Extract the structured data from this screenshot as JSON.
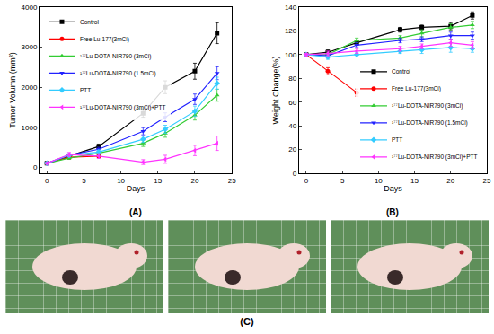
{
  "chart_data": [
    {
      "type": "line",
      "caption": "(A)",
      "x_label": "Days",
      "y_label": "Tumor Volumn (mm³)",
      "xlim": [
        -1,
        25
      ],
      "xticks": [
        0,
        5,
        10,
        15,
        20,
        25
      ],
      "ylim": [
        -150,
        4000
      ],
      "yticks": [
        0,
        1000,
        2000,
        3000,
        4000
      ],
      "legend": "upper left",
      "series": [
        {
          "name": "Control",
          "color": "#000000",
          "marker": "square",
          "x": [
            0,
            3,
            7,
            13,
            16,
            20,
            23
          ],
          "values": [
            100,
            280,
            520,
            1350,
            2000,
            2400,
            3350
          ],
          "errors": [
            10,
            40,
            60,
            100,
            160,
            200,
            260
          ]
        },
        {
          "name": "Free Lu-177(3mCi)",
          "color": "#ff0000",
          "marker": "circle",
          "x": [
            0,
            3,
            7
          ],
          "values": [
            100,
            250,
            280
          ],
          "errors": [
            10,
            40,
            40
          ]
        },
        {
          "name": "¹⁷⁷Lu-DOTA-NIR790 (3mCi)",
          "color": "#33cc33",
          "marker": "triangle-up",
          "x": [
            0,
            3,
            7,
            13,
            16,
            20,
            23
          ],
          "values": [
            100,
            230,
            350,
            600,
            850,
            1300,
            1800
          ],
          "errors": [
            10,
            30,
            50,
            80,
            100,
            120,
            150
          ]
        },
        {
          "name": "¹⁷⁷Lu-DOTA-NIR790 (1.5mCi)",
          "color": "#2222ff",
          "marker": "triangle-down",
          "x": [
            0,
            3,
            7,
            13,
            16,
            20,
            23
          ],
          "values": [
            100,
            300,
            450,
            900,
            1250,
            1700,
            2350
          ],
          "errors": [
            10,
            30,
            50,
            90,
            110,
            130,
            160
          ]
        },
        {
          "name": "PTT",
          "color": "#33ccff",
          "marker": "diamond",
          "x": [
            0,
            3,
            7,
            13,
            16,
            20,
            23
          ],
          "values": [
            100,
            300,
            380,
            700,
            950,
            1400,
            2100
          ],
          "errors": [
            10,
            40,
            50,
            80,
            100,
            130,
            150
          ]
        },
        {
          "name": "¹⁷⁷Lu-DOTA-NIR790 (3mCi)+PTT",
          "color": "#ff33ff",
          "marker": "triangle-left",
          "x": [
            0,
            3,
            7,
            13,
            16,
            20,
            23
          ],
          "values": [
            100,
            320,
            280,
            130,
            200,
            420,
            600
          ],
          "errors": [
            10,
            50,
            60,
            60,
            100,
            130,
            180
          ]
        }
      ]
    },
    {
      "type": "line",
      "caption": "(B)",
      "x_label": "Days",
      "y_label": "Weight Change(%)",
      "xlim": [
        -1,
        25
      ],
      "xticks": [
        0,
        5,
        10,
        15,
        20,
        25
      ],
      "ylim": [
        0,
        140
      ],
      "yticks": [
        0,
        20,
        40,
        60,
        80,
        100,
        120,
        140
      ],
      "legend": "lower right",
      "series": [
        {
          "name": "Control",
          "color": "#000000",
          "marker": "square",
          "x": [
            0,
            3,
            7,
            13,
            16,
            20,
            23
          ],
          "values": [
            100,
            102,
            110,
            121,
            123,
            124,
            133
          ],
          "errors": [
            1,
            2,
            2,
            2,
            2,
            3,
            3
          ]
        },
        {
          "name": "Free Lu-177(3mCi)",
          "color": "#ff0000",
          "marker": "circle",
          "x": [
            0,
            3,
            7
          ],
          "values": [
            100,
            86,
            68
          ],
          "errors": [
            1,
            3,
            3
          ]
        },
        {
          "name": "¹⁷⁷Lu-DOTA-NIR790 (3mCi)",
          "color": "#33cc33",
          "marker": "triangle-up",
          "x": [
            0,
            3,
            7,
            13,
            16,
            20,
            23
          ],
          "values": [
            100,
            100,
            112,
            114,
            118,
            123,
            125
          ],
          "errors": [
            1,
            2,
            2,
            2,
            3,
            3,
            3
          ]
        },
        {
          "name": "¹⁷⁷Lu-DOTA-NIR790 (1.5mCi)",
          "color": "#2222ff",
          "marker": "triangle-down",
          "x": [
            0,
            3,
            7,
            13,
            16,
            20,
            23
          ],
          "values": [
            100,
            99,
            108,
            112,
            113,
            116,
            116
          ],
          "errors": [
            1,
            2,
            2,
            2,
            2,
            3,
            3
          ]
        },
        {
          "name": "PTT",
          "color": "#33ccff",
          "marker": "diamond",
          "x": [
            0,
            3,
            7,
            13,
            16,
            20,
            23
          ],
          "values": [
            100,
            98,
            100,
            103,
            104,
            106,
            105
          ],
          "errors": [
            1,
            2,
            2,
            2,
            3,
            4,
            3
          ]
        },
        {
          "name": "¹⁷⁷Lu-DOTA-NIR790 (3mCi)+PTT",
          "color": "#ff33ff",
          "marker": "triangle-left",
          "x": [
            0,
            3,
            7,
            13,
            16,
            20,
            23
          ],
          "values": [
            100,
            101,
            103,
            105,
            107,
            110,
            108
          ],
          "errors": [
            1,
            2,
            2,
            2,
            2,
            3,
            3
          ]
        }
      ]
    }
  ],
  "photos": {
    "caption": "(C)",
    "images": 3
  }
}
